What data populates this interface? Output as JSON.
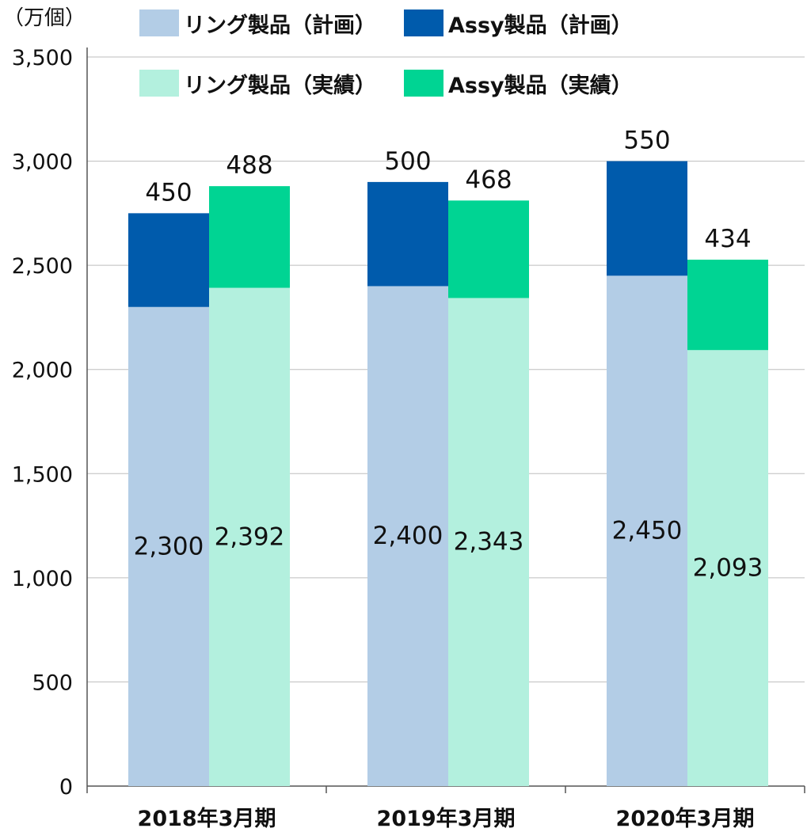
{
  "chart_data": {
    "type": "bar",
    "unit_label": "（万個）",
    "categories": [
      "2018年3月期",
      "2019年3月期",
      "2020年3月期"
    ],
    "ylim": [
      0,
      3500
    ],
    "yticks": [
      0,
      500,
      1000,
      1500,
      2000,
      2500,
      3000,
      3500
    ],
    "ytick_labels": [
      "0",
      "500",
      "1,000",
      "1,500",
      "2,000",
      "2,500",
      "3,000",
      "3,500"
    ],
    "grid": true,
    "legend_position": "top",
    "stacks": [
      {
        "series": [
          {
            "name": "リング製品（計画）",
            "color": "#b3cde6",
            "values": [
              2300,
              2400,
              2450
            ],
            "labels": [
              "2,300",
              "2,400",
              "2,450"
            ]
          },
          {
            "name": "Assy製品（計画）",
            "color": "#005bac",
            "values": [
              450,
              500,
              550
            ],
            "labels": [
              "450",
              "500",
              "550"
            ]
          }
        ]
      },
      {
        "series": [
          {
            "name": "リング製品（実績）",
            "color": "#b3f0de",
            "values": [
              2392,
              2343,
              2093
            ],
            "labels": [
              "2,392",
              "2,343",
              "2,093"
            ]
          },
          {
            "name": "Assy製品（実績）",
            "color": "#00d493",
            "values": [
              488,
              468,
              434
            ],
            "labels": [
              "488",
              "468",
              "434"
            ]
          }
        ]
      }
    ]
  }
}
